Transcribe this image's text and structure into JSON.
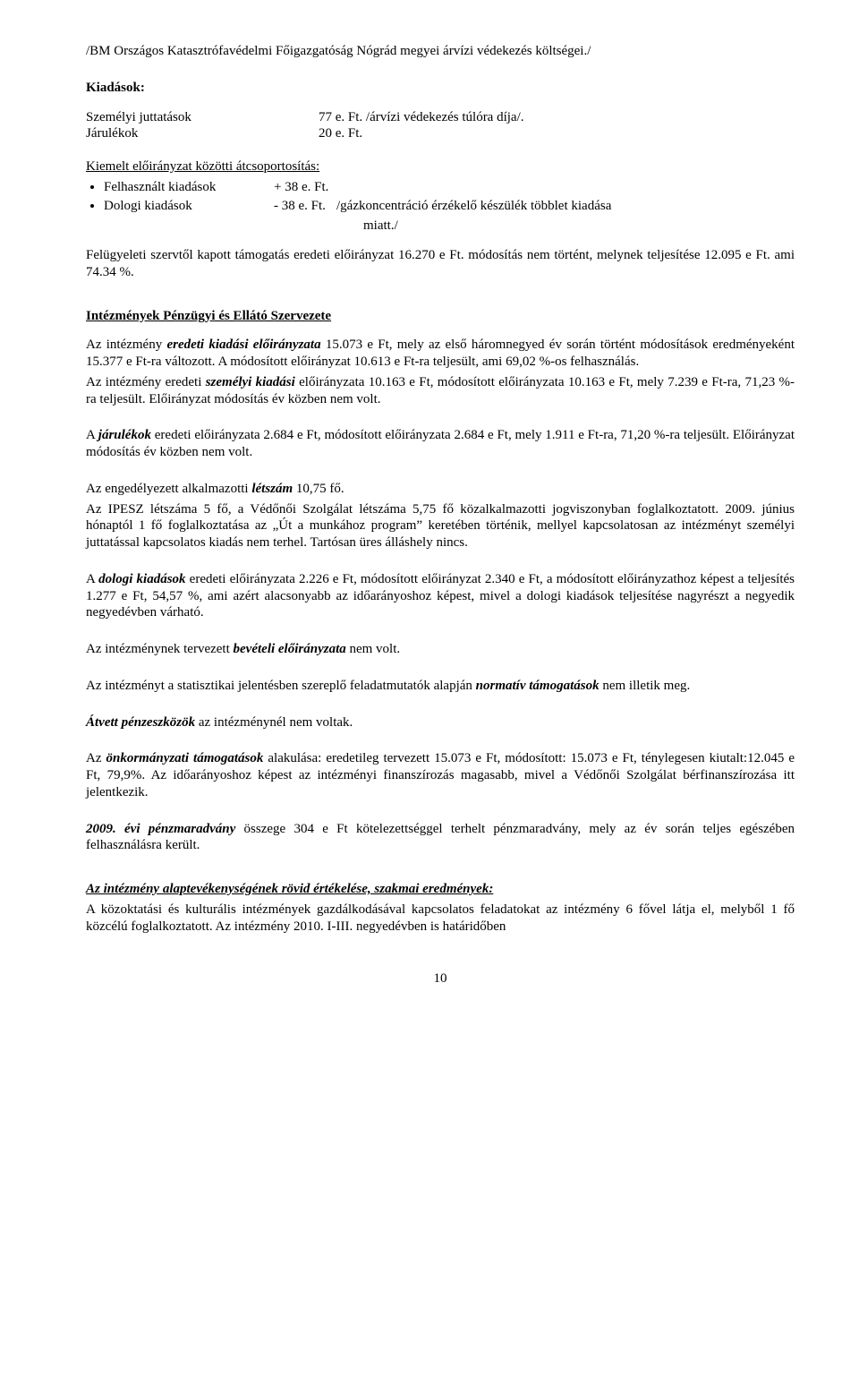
{
  "title_line": "/BM Országos Katasztrófavédelmi Főigazgatóság Nógrád megyei árvízi védekezés költségei./",
  "kiadasok_heading": "Kiadások:",
  "kv1": {
    "label": "Személyi juttatások",
    "value": "77 e. Ft. /árvízi védekezés túlóra díja/."
  },
  "kv2": {
    "label": "Járulékok",
    "value": "20 e. Ft."
  },
  "section_underline": "Kiemelt előirányzat közötti átcsoportosítás:",
  "bullet1": {
    "label": "Felhasznált kiadások",
    "value": "+ 38 e. Ft."
  },
  "bullet2": {
    "label": "Dologi kiadások",
    "value": "-  38 e. Ft.",
    "extra": "/gázkoncentráció érzékelő készülék többlet kiadása",
    "extra2": "miatt./"
  },
  "p_felugy": "Felügyeleti szervtől kapott támogatás eredeti előirányzat 16.270 e Ft. módosítás nem történt, melynek teljesítése 12.095 e Ft. ami 74.34 %.",
  "heading2": "Intézmények Pénzügyi és Ellátó Szervezete",
  "p1_a": "Az intézmény ",
  "p1_b": "eredeti kiadási előirányzata",
  "p1_c": " 15.073 e Ft, mely az első háromnegyed év során történt módosítások eredményeként 15.377 e Ft-ra változott. A módosított előirányzat 10.613 e Ft-ra teljesült, ami 69,02 %-os felhasználás.",
  "p2_a": "Az intézmény eredeti ",
  "p2_b": "személyi kiadási",
  "p2_c": " előirányzata 10.163 e Ft, módosított előirányzata 10.163 e Ft, mely 7.239 e Ft-ra, 71,23 %-ra teljesült. Előirányzat módosítás év közben nem volt.",
  "p3_a": "A ",
  "p3_b": "járulékok",
  "p3_c": " eredeti előirányzata 2.684 e Ft, módosított előirányzata 2.684 e Ft, mely 1.911 e Ft-ra, 71,20 %-ra teljesült. Előirányzat módosítás év közben nem volt.",
  "p4_a": "Az engedélyezett alkalmazotti ",
  "p4_b": "létszám",
  "p4_c": " 10,75 fő.",
  "p5": "Az IPESZ létszáma 5 fő, a Védőnői Szolgálat létszáma 5,75 fő közalkalmazotti jogviszonyban foglalkoztatott. 2009. június hónaptól 1 fő foglalkoztatása az „Út a munkához program” keretében történik, mellyel kapcsolatosan az intézményt személyi juttatással kapcsolatos kiadás nem terhel. Tartósan üres álláshely nincs.",
  "p6_a": "A ",
  "p6_b": "dologi kiadások",
  "p6_c": " eredeti előirányzata 2.226 e Ft, módosított előirányzat 2.340 e Ft, a módosított előirányzathoz képest a teljesítés 1.277 e Ft, 54,57 %, ami azért alacsonyabb az időarányoshoz képest, mivel a dologi kiadások teljesítése nagyrészt a negyedik negyedévben várható.",
  "p7_a": "Az intézménynek tervezett ",
  "p7_b": "bevételi előirányzata",
  "p7_c": " nem volt.",
  "p8_a": "Az intézményt a statisztikai jelentésben szereplő feladatmutatók alapján ",
  "p8_b": "normatív támogatások",
  "p8_c": " nem illetik meg.",
  "p9_a": "Átvett pénzeszközök",
  "p9_b": " az intézménynél nem voltak.",
  "p10_a": "Az ",
  "p10_b": "önkormányzati támogatások",
  "p10_c": " alakulása: eredetileg tervezett 15.073 e Ft, módosított: 15.073 e Ft, ténylegesen kiutalt:12.045 e Ft, 79,9%. Az időarányoshoz képest az intézményi finanszírozás magasabb, mivel a Védőnői Szolgálat bérfinanszírozása itt jelentkezik.",
  "p11_a": "2009. évi pénzmaradvány",
  "p11_b": " összege 304 e Ft kötelezettséggel terhelt pénzmaradvány, mely az év során teljes egészében felhasználásra került.",
  "closing_heading": "Az intézmény alaptevékenységének rövid értékelése, szakmai eredmények:",
  "closing_p": "A közoktatási és kulturális intézmények gazdálkodásával kapcsolatos feladatokat az intézmény 6 fővel látja el, melyből 1 fő közcélú foglalkoztatott. Az intézmény 2010. I-III. negyedévben is határidőben",
  "page_number": "10"
}
